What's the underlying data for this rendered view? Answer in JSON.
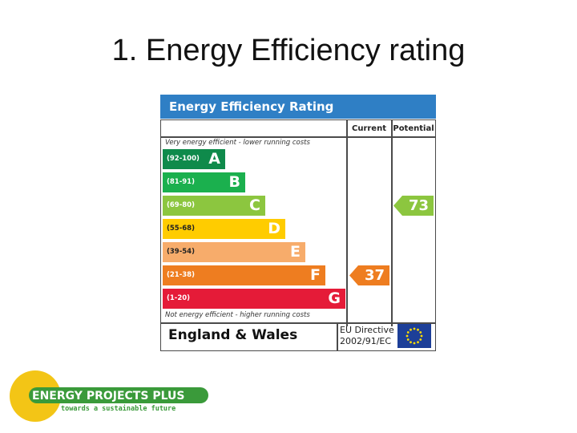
{
  "slide": {
    "title": "1. Energy Efficiency rating"
  },
  "epc": {
    "header": "Energy Efficiency Rating",
    "columns": {
      "current": "Current",
      "potential": "Potential"
    },
    "top_note": "Very energy efficient - lower running costs",
    "bottom_note": "Not energy efficient - higher running costs",
    "bands": [
      {
        "letter": "A",
        "range": "(92-100)",
        "color": "#0f8a4b"
      },
      {
        "letter": "B",
        "range": "(81-91)",
        "color": "#1bb04e"
      },
      {
        "letter": "C",
        "range": "(69-80)",
        "color": "#8cc63f"
      },
      {
        "letter": "D",
        "range": "(55-68)",
        "color": "#ffcc00"
      },
      {
        "letter": "E",
        "range": "(39-54)",
        "color": "#f7ac6b"
      },
      {
        "letter": "F",
        "range": "(21-38)",
        "color": "#ee7d20"
      },
      {
        "letter": "G",
        "range": "(1-20)",
        "color": "#e51b38"
      }
    ],
    "current": {
      "value": "37",
      "band": "F"
    },
    "potential": {
      "value": "73",
      "band": "C"
    },
    "region": "England & Wales",
    "directive_line1": "EU Directive",
    "directive_line2": "2002/91/EC",
    "flag_icon": "eu-flag-icon"
  },
  "logo": {
    "name": "ENERGY PROJECTS PLUS",
    "tagline": "towards a sustainable future",
    "circle_color": "#f3c516",
    "text_color": "#3a9a3a"
  }
}
